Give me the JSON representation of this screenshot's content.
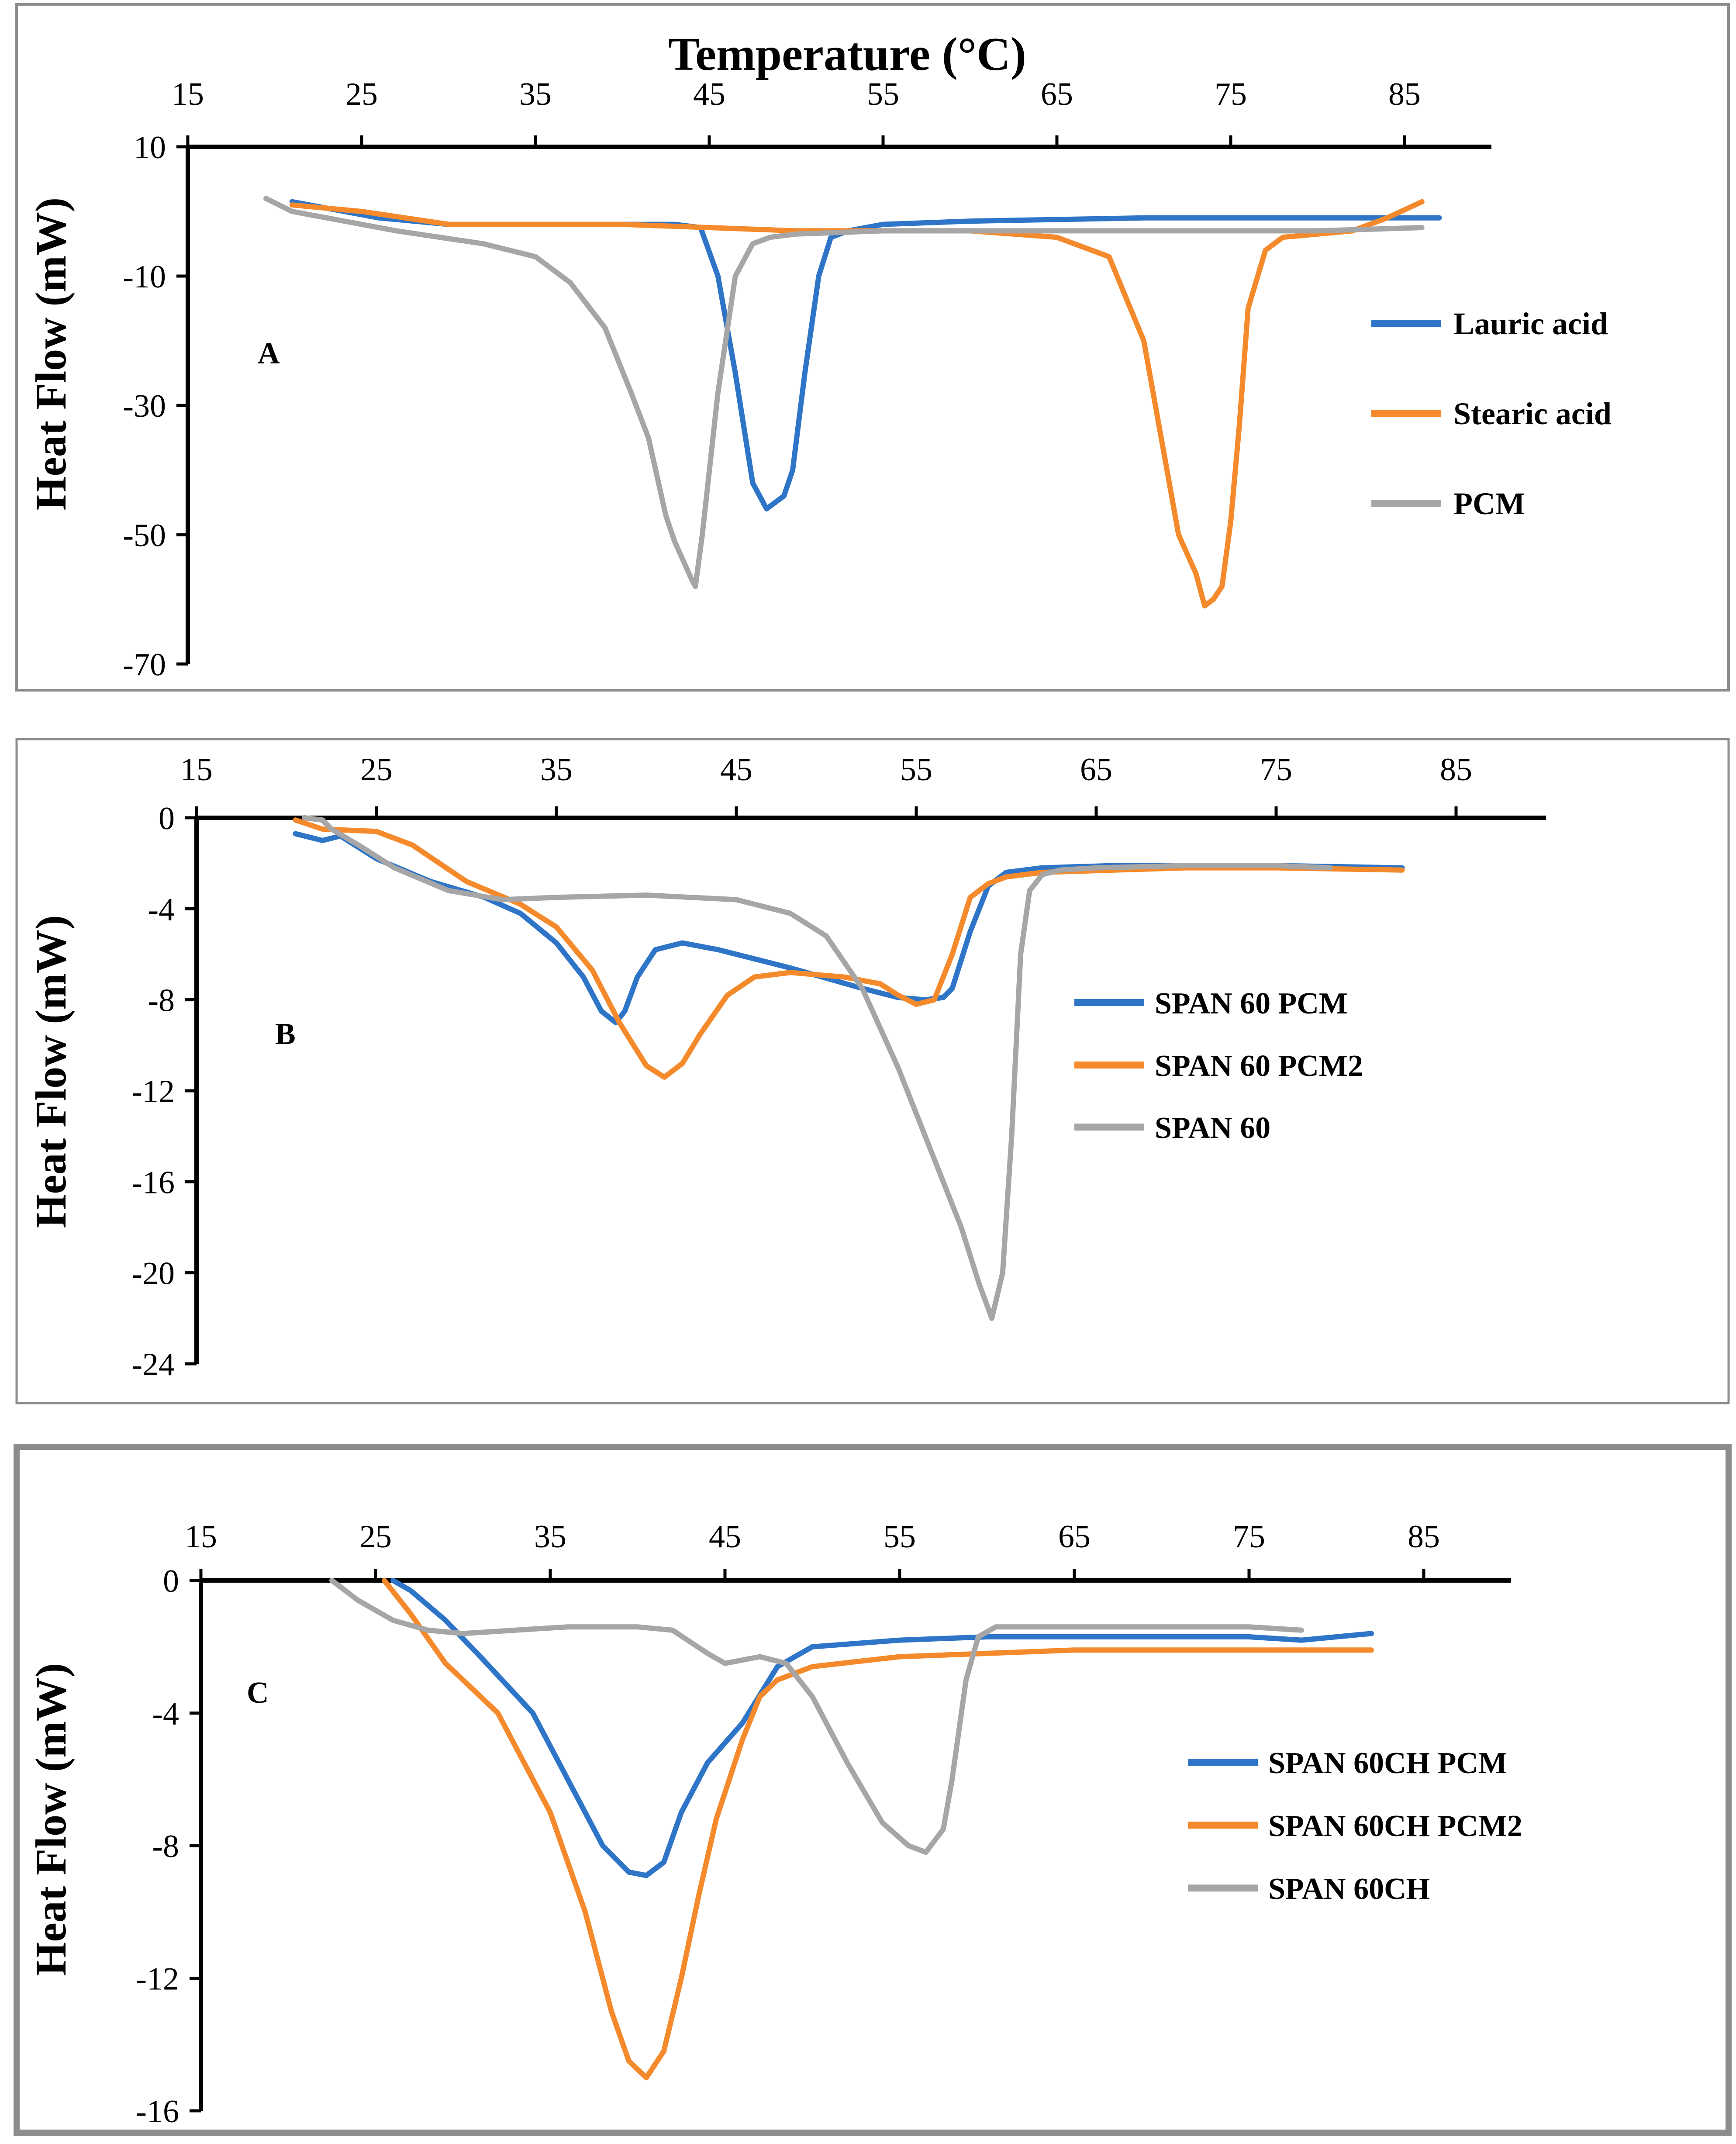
{
  "figure": {
    "colors": {
      "blue": "#2E75C8",
      "orange": "#F58A2C",
      "gray": "#A6A6A6",
      "axis": "#000000",
      "frame": "#8C8C8C"
    }
  },
  "chart_data": [
    {
      "type": "line",
      "panel_label": "A",
      "title": "Temperature (°C)",
      "xlabel": "Temperature (°C)",
      "ylabel": "Heat Flow (mW)",
      "xlim": [
        15,
        90
      ],
      "ylim": [
        -70,
        10
      ],
      "xticks": [
        15,
        25,
        35,
        45,
        55,
        65,
        75,
        85
      ],
      "yticks": [
        10,
        -10,
        -30,
        -50,
        -70
      ],
      "legend_position": "right",
      "series": [
        {
          "name": "Lauric acid",
          "color": "#2E75C8",
          "x": [
            21,
            23,
            26,
            30,
            35,
            40,
            43,
            44.5,
            45.5,
            46.5,
            47.5,
            48.3,
            48.8,
            49.3,
            49.8,
            50.5,
            51.3,
            52,
            53,
            55,
            60,
            70,
            80,
            87
          ],
          "y": [
            1.5,
            0.5,
            -1,
            -2,
            -2,
            -2,
            -2,
            -2.5,
            -10,
            -25,
            -42,
            -46,
            -45,
            -44,
            -40,
            -25,
            -10,
            -4,
            -3,
            -2,
            -1.5,
            -1,
            -1,
            -1
          ]
        },
        {
          "name": "Stearic acid",
          "color": "#F58A2C",
          "x": [
            21,
            25,
            30,
            40,
            50,
            60,
            65,
            68,
            70,
            71,
            72,
            73,
            73.5,
            74,
            74.5,
            75,
            75.5,
            76,
            77,
            78,
            80,
            82,
            84,
            86
          ],
          "y": [
            1,
            0,
            -2,
            -2,
            -3,
            -3,
            -4,
            -7,
            -20,
            -35,
            -50,
            -56,
            -61,
            -60,
            -58,
            -48,
            -33,
            -15,
            -6,
            -4,
            -3.5,
            -3,
            -1,
            1.5
          ]
        },
        {
          "name": "PCM",
          "color": "#A6A6A6",
          "x": [
            19.5,
            21,
            23,
            27,
            32,
            35,
            37,
            39,
            40.5,
            41.5,
            42.5,
            43,
            43.5,
            44,
            44.2,
            44.6,
            45.5,
            46.5,
            47.5,
            48.5,
            50,
            55,
            60,
            70,
            80,
            86
          ],
          "y": [
            2,
            0,
            -1,
            -3,
            -5,
            -7,
            -11,
            -18,
            -28,
            -35,
            -47,
            -51,
            -54,
            -57,
            -58,
            -50,
            -28,
            -10,
            -5,
            -4,
            -3.5,
            -3,
            -3,
            -3,
            -3,
            -2.5
          ]
        }
      ]
    },
    {
      "type": "line",
      "panel_label": "B",
      "title": "",
      "xlabel": "",
      "ylabel": "Heat Flow (mW)",
      "xlim": [
        15,
        90
      ],
      "ylim": [
        -24,
        0
      ],
      "xticks": [
        15,
        25,
        35,
        45,
        55,
        65,
        75,
        85
      ],
      "yticks": [
        0,
        -4,
        -8,
        -12,
        -16,
        -20,
        -24
      ],
      "legend_position": "right",
      "series": [
        {
          "name": "SPAN 60 PCM",
          "color": "#2E75C8",
          "x": [
            20.5,
            22,
            23,
            25,
            28,
            31,
            33,
            35,
            36.5,
            37.5,
            38.3,
            38.8,
            39.5,
            40.5,
            42,
            44,
            48,
            52,
            54,
            55.5,
            56.5,
            57,
            58,
            59,
            60,
            62,
            66,
            70,
            75,
            82
          ],
          "y": [
            -0.7,
            -1,
            -0.8,
            -1.8,
            -2.8,
            -3.5,
            -4.2,
            -5.5,
            -7,
            -8.5,
            -9,
            -8.5,
            -7,
            -5.8,
            -5.5,
            -5.8,
            -6.6,
            -7.5,
            -7.9,
            -8.0,
            -7.9,
            -7.5,
            -5,
            -3,
            -2.4,
            -2.2,
            -2.1,
            -2.1,
            -2.1,
            -2.2
          ]
        },
        {
          "name": "SPAN 60 PCM2",
          "color": "#F58A2C",
          "x": [
            20.5,
            22,
            25,
            27,
            30,
            33,
            35,
            37,
            38.5,
            40,
            41,
            42,
            43,
            44.5,
            46,
            48,
            51,
            53,
            54,
            55,
            56,
            57,
            58,
            59,
            60,
            62,
            66,
            70,
            75,
            82
          ],
          "y": [
            -0.1,
            -0.5,
            -0.6,
            -1.2,
            -2.8,
            -3.8,
            -4.8,
            -6.7,
            -9,
            -10.9,
            -11.4,
            -10.8,
            -9.5,
            -7.8,
            -7.0,
            -6.8,
            -7.0,
            -7.3,
            -7.8,
            -8.2,
            -8.0,
            -6,
            -3.5,
            -2.9,
            -2.6,
            -2.4,
            -2.3,
            -2.2,
            -2.2,
            -2.3
          ]
        },
        {
          "name": "SPAN 60",
          "color": "#A6A6A6",
          "x": [
            21,
            22,
            22.5,
            24,
            26,
            29,
            32,
            35,
            40,
            45,
            48,
            50,
            52,
            54,
            56,
            57.5,
            58.5,
            59.2,
            59.8,
            60.3,
            60.8,
            61.3,
            62,
            63,
            65,
            70,
            75,
            78
          ],
          "y": [
            0,
            -0.1,
            -0.5,
            -1.2,
            -2.2,
            -3.2,
            -3.6,
            -3.5,
            -3.4,
            -3.6,
            -4.2,
            -5.2,
            -7.5,
            -11,
            -15,
            -18,
            -20.5,
            -22,
            -20,
            -14,
            -6,
            -3.2,
            -2.5,
            -2.3,
            -2.2,
            -2.1,
            -2.1,
            -2.2
          ]
        }
      ]
    },
    {
      "type": "line",
      "panel_label": "C",
      "title": "",
      "xlabel": "",
      "ylabel": "Heat Flow (mW)",
      "xlim": [
        15,
        90
      ],
      "ylim": [
        -16,
        0
      ],
      "xticks": [
        15,
        25,
        35,
        45,
        55,
        65,
        75,
        85
      ],
      "yticks": [
        0,
        -4,
        -8,
        -12,
        -16
      ],
      "legend_position": "right",
      "series": [
        {
          "name": "SPAN 60CH PCM",
          "color": "#2E75C8",
          "x": [
            26,
            27,
            29,
            31,
            34,
            36,
            38,
            39.5,
            40.5,
            41.5,
            42.5,
            44,
            46,
            48,
            50,
            55,
            60,
            65,
            70,
            75,
            78,
            80,
            82
          ],
          "y": [
            0,
            -0.3,
            -1.2,
            -2.3,
            -4,
            -6,
            -8,
            -8.8,
            -8.9,
            -8.5,
            -7,
            -5.5,
            -4.3,
            -2.6,
            -2.0,
            -1.8,
            -1.7,
            -1.7,
            -1.7,
            -1.7,
            -1.8,
            -1.7,
            -1.6
          ]
        },
        {
          "name": "SPAN 60CH PCM2",
          "color": "#F58A2C",
          "x": [
            25.5,
            27,
            29,
            32,
            35,
            37,
            38.5,
            39.5,
            40.5,
            41.5,
            42.5,
            43.5,
            44.5,
            46,
            47,
            48,
            50,
            55,
            60,
            65,
            70,
            75,
            82
          ],
          "y": [
            0,
            -1,
            -2.5,
            -4,
            -7,
            -10,
            -13,
            -14.5,
            -15.0,
            -14.2,
            -12,
            -9.5,
            -7.2,
            -4.8,
            -3.5,
            -3.0,
            -2.6,
            -2.3,
            -2.2,
            -2.1,
            -2.1,
            -2.1,
            -2.1
          ]
        },
        {
          "name": "SPAN 60CH",
          "color": "#A6A6A6",
          "x": [
            22.5,
            24,
            26,
            28,
            30,
            33,
            36,
            40,
            42,
            44,
            45,
            47,
            48.5,
            50,
            52,
            54,
            55.5,
            56.5,
            57.5,
            58,
            58.8,
            59.5,
            60.5,
            62,
            65,
            70,
            75,
            78
          ],
          "y": [
            0,
            -0.6,
            -1.2,
            -1.5,
            -1.6,
            -1.5,
            -1.4,
            -1.4,
            -1.5,
            -2.2,
            -2.5,
            -2.3,
            -2.5,
            -3.5,
            -5.5,
            -7.3,
            -8.0,
            -8.2,
            -7.5,
            -6,
            -3,
            -1.7,
            -1.4,
            -1.4,
            -1.4,
            -1.4,
            -1.4,
            -1.5
          ]
        }
      ]
    }
  ]
}
